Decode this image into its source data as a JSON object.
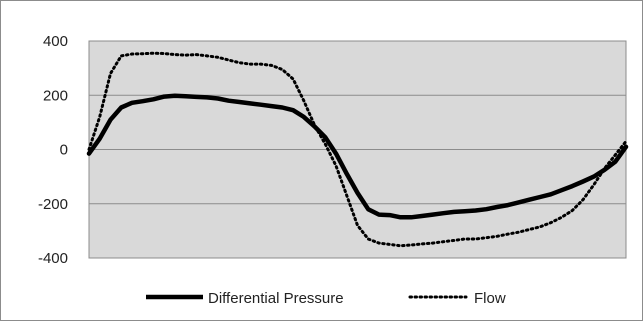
{
  "chart_data": {
    "type": "line",
    "title": "",
    "xlabel": "",
    "ylabel": "",
    "ylim": [
      -400,
      400
    ],
    "xlim": [
      0,
      100
    ],
    "yticks": [
      400,
      200,
      0,
      -200,
      -400
    ],
    "ytick_labels": [
      "400",
      "200",
      "0",
      "-200",
      "-400"
    ],
    "grid": true,
    "legend_position": "bottom",
    "plot_background": "#d9d9d9",
    "series": [
      {
        "name": "Differential Pressure",
        "style": "solid",
        "color": "#000000",
        "x": [
          0,
          2,
          4,
          6,
          8,
          10,
          12,
          14,
          16,
          18,
          20,
          22,
          24,
          26,
          28,
          30,
          32,
          34,
          36,
          38,
          40,
          42,
          44,
          46,
          48,
          50,
          52,
          54,
          56,
          58,
          60,
          62,
          64,
          66,
          68,
          70,
          72,
          74,
          76,
          78,
          80,
          82,
          84,
          86,
          88,
          90,
          92,
          94,
          96,
          98,
          100
        ],
        "y": [
          -15,
          40,
          110,
          155,
          172,
          178,
          185,
          195,
          198,
          196,
          194,
          192,
          188,
          180,
          175,
          170,
          165,
          160,
          155,
          145,
          120,
          85,
          45,
          -15,
          -90,
          -160,
          -220,
          -240,
          -242,
          -250,
          -250,
          -245,
          -240,
          -235,
          -230,
          -228,
          -225,
          -220,
          -212,
          -205,
          -195,
          -185,
          -175,
          -165,
          -150,
          -135,
          -118,
          -100,
          -75,
          -45,
          10
        ]
      },
      {
        "name": "Flow",
        "style": "dotted",
        "color": "#000000",
        "x": [
          0,
          2,
          4,
          6,
          8,
          10,
          12,
          14,
          16,
          18,
          20,
          22,
          24,
          26,
          28,
          30,
          32,
          34,
          36,
          38,
          40,
          42,
          44,
          46,
          48,
          50,
          52,
          54,
          56,
          58,
          60,
          62,
          64,
          66,
          68,
          70,
          72,
          74,
          76,
          78,
          80,
          82,
          84,
          86,
          88,
          90,
          92,
          94,
          96,
          98,
          100
        ],
        "y": [
          0,
          120,
          280,
          345,
          352,
          353,
          355,
          354,
          350,
          348,
          350,
          345,
          340,
          330,
          320,
          315,
          315,
          310,
          295,
          260,
          180,
          90,
          20,
          -60,
          -170,
          -280,
          -330,
          -345,
          -350,
          -355,
          -352,
          -348,
          -345,
          -340,
          -335,
          -330,
          -330,
          -325,
          -320,
          -312,
          -305,
          -295,
          -285,
          -270,
          -250,
          -225,
          -185,
          -130,
          -70,
          -20,
          30
        ]
      }
    ]
  }
}
